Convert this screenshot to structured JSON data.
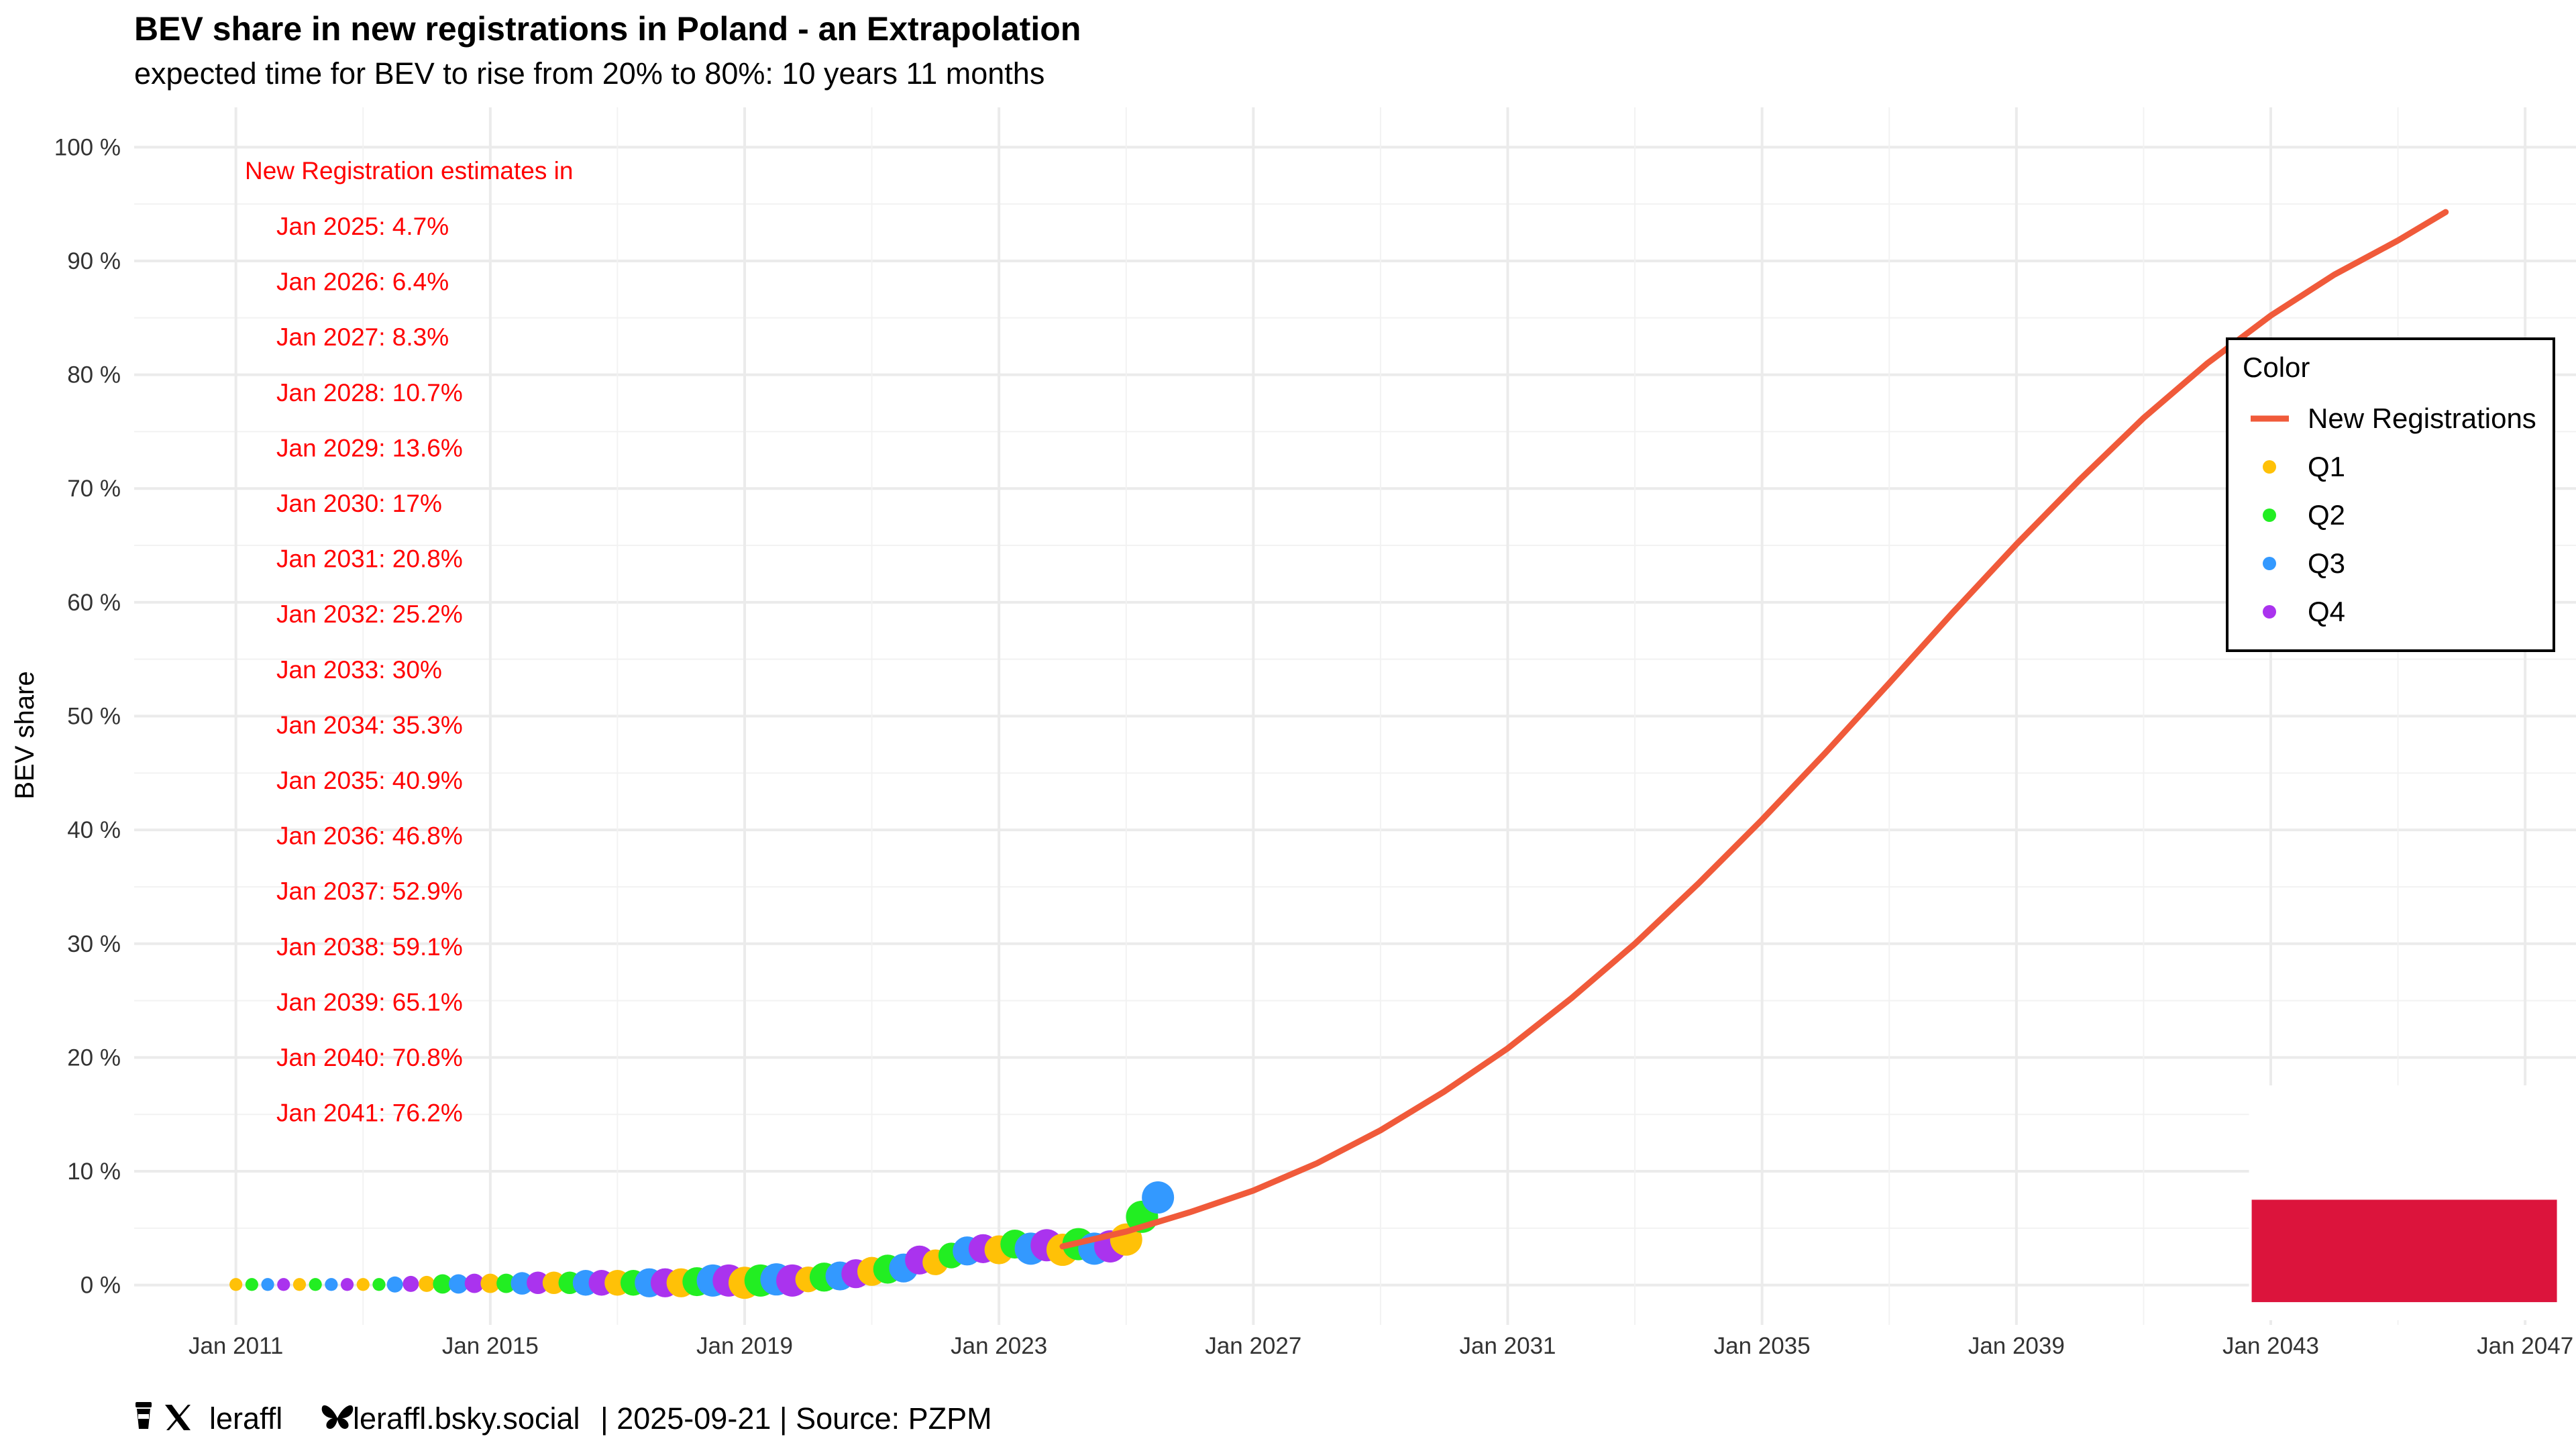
{
  "title": "BEV share in new registrations in Poland - an Extrapolation",
  "subtitle": "expected time for BEV to rise from 20% to 80%: 10 years 11 months",
  "caption": {
    "handle_x": "leraffl",
    "handle_bsky": "leraffl.bsky.social",
    "rest": "| 2025-09-21 | Source: PZPM",
    "icons": [
      "coffee-icon",
      "x-logo-icon",
      "butterfly-icon"
    ]
  },
  "colors": {
    "curve": "#f05a3a",
    "Q1": "#ffc107",
    "Q2": "#22ee22",
    "Q3": "#3399ff",
    "Q4": "#aa33ee",
    "annotation": "#ff0000",
    "red_box": "#dc143c"
  },
  "annotations": {
    "header": "New Registration estimates in",
    "lines": [
      "Jan 2025: 4.7%",
      "Jan 2026: 6.4%",
      "Jan 2027: 8.3%",
      "Jan 2028: 10.7%",
      "Jan 2029: 13.6%",
      "Jan 2030: 17%",
      "Jan 2031: 20.8%",
      "Jan 2032: 25.2%",
      "Jan 2033: 30%",
      "Jan 2034: 35.3%",
      "Jan 2035: 40.9%",
      "Jan 2036: 46.8%",
      "Jan 2037: 52.9%",
      "Jan 2038: 59.1%",
      "Jan 2039: 65.1%",
      "Jan 2040: 70.8%",
      "Jan 2041: 76.2%"
    ]
  },
  "chart_data": {
    "type": "line",
    "title": "BEV share in new registrations in Poland - an Extrapolation",
    "subtitle": "expected time for BEV to rise from 20% to 80%: 10 years 11 months",
    "xlabel": "",
    "ylabel": "BEV share",
    "xlim": [
      2009.4,
      2047.8
    ],
    "ylim": [
      -3.5,
      103.5
    ],
    "grid": true,
    "x_ticks": [
      2011,
      2015,
      2019,
      2023,
      2027,
      2031,
      2035,
      2039,
      2043,
      2047
    ],
    "x_tick_labels": [
      "Jan 2011",
      "Jan 2015",
      "Jan 2019",
      "Jan 2023",
      "Jan 2027",
      "Jan 2031",
      "Jan 2035",
      "Jan 2039",
      "Jan 2043",
      "Jan 2047"
    ],
    "y_ticks": [
      0,
      10,
      20,
      30,
      40,
      50,
      60,
      70,
      80,
      90,
      100
    ],
    "y_tick_labels": [
      "0 %",
      "10 %",
      "20 %",
      "30 %",
      "40 %",
      "50 %",
      "60 %",
      "70 %",
      "80 %",
      "90 %",
      "100 %"
    ],
    "legend": {
      "title": "Color",
      "position": "right",
      "entries": [
        "New Registrations",
        "Q1",
        "Q2",
        "Q3",
        "Q4"
      ]
    },
    "curve": {
      "name": "New Registrations",
      "x": [
        2024.0,
        2025.0,
        2026.0,
        2027.0,
        2028.0,
        2029.0,
        2030.0,
        2031.0,
        2032.0,
        2033.0,
        2034.0,
        2035.0,
        2036.0,
        2037.0,
        2038.0,
        2039.0,
        2040.0,
        2041.0,
        2042.0,
        2043.0,
        2044.0,
        2045.0,
        2045.75
      ],
      "y": [
        3.4,
        4.7,
        6.4,
        8.3,
        10.7,
        13.6,
        17.0,
        20.8,
        25.2,
        30.0,
        35.3,
        40.9,
        46.8,
        52.9,
        59.1,
        65.1,
        70.8,
        76.2,
        81.0,
        85.2,
        88.8,
        91.8,
        94.3
      ]
    },
    "points": {
      "series": [
        "Q1",
        "Q2",
        "Q3",
        "Q4"
      ],
      "x": [
        2011.0,
        2011.25,
        2011.5,
        2011.75,
        2012.0,
        2012.25,
        2012.5,
        2012.75,
        2013.0,
        2013.25,
        2013.5,
        2013.75,
        2014.0,
        2014.25,
        2014.5,
        2014.75,
        2015.0,
        2015.25,
        2015.5,
        2015.75,
        2016.0,
        2016.25,
        2016.5,
        2016.75,
        2017.0,
        2017.25,
        2017.5,
        2017.75,
        2018.0,
        2018.25,
        2018.5,
        2018.75,
        2019.0,
        2019.25,
        2019.5,
        2019.75,
        2020.0,
        2020.25,
        2020.5,
        2020.75,
        2021.0,
        2021.25,
        2021.5,
        2021.75,
        2022.0,
        2022.25,
        2022.5,
        2022.75,
        2023.0,
        2023.25,
        2023.5,
        2023.75,
        2024.0,
        2024.25,
        2024.5,
        2024.75,
        2025.0,
        2025.25,
        2025.5
      ],
      "y": [
        0.05,
        0.05,
        0.05,
        0.05,
        0.05,
        0.05,
        0.05,
        0.05,
        0.05,
        0.05,
        0.05,
        0.1,
        0.1,
        0.1,
        0.1,
        0.15,
        0.15,
        0.15,
        0.15,
        0.2,
        0.2,
        0.2,
        0.2,
        0.2,
        0.2,
        0.2,
        0.2,
        0.2,
        0.2,
        0.3,
        0.4,
        0.4,
        0.2,
        0.4,
        0.5,
        0.4,
        0.5,
        0.7,
        0.8,
        1.0,
        1.2,
        1.4,
        1.5,
        2.2,
        2.0,
        2.6,
        3.0,
        3.2,
        3.1,
        3.6,
        3.2,
        3.5,
        3.1,
        3.6,
        3.2,
        3.4,
        4.0,
        6.0,
        7.7
      ],
      "size": [
        4,
        4,
        4,
        4,
        4,
        4,
        4,
        4,
        4,
        4,
        5,
        5,
        5,
        6,
        6,
        6,
        6,
        6,
        7,
        7,
        7,
        7,
        8,
        8,
        8,
        8,
        9,
        9,
        9,
        9,
        10,
        10,
        10,
        10,
        10,
        10,
        8,
        9,
        9,
        9,
        9,
        9,
        9,
        9,
        8,
        8,
        9,
        9,
        9,
        9,
        10,
        10,
        10,
        10,
        10,
        10,
        10,
        10,
        10
      ]
    },
    "highlight_box": {
      "x": [
        2042.7,
        2047.5
      ],
      "y": [
        -1.5,
        7.5
      ]
    }
  }
}
